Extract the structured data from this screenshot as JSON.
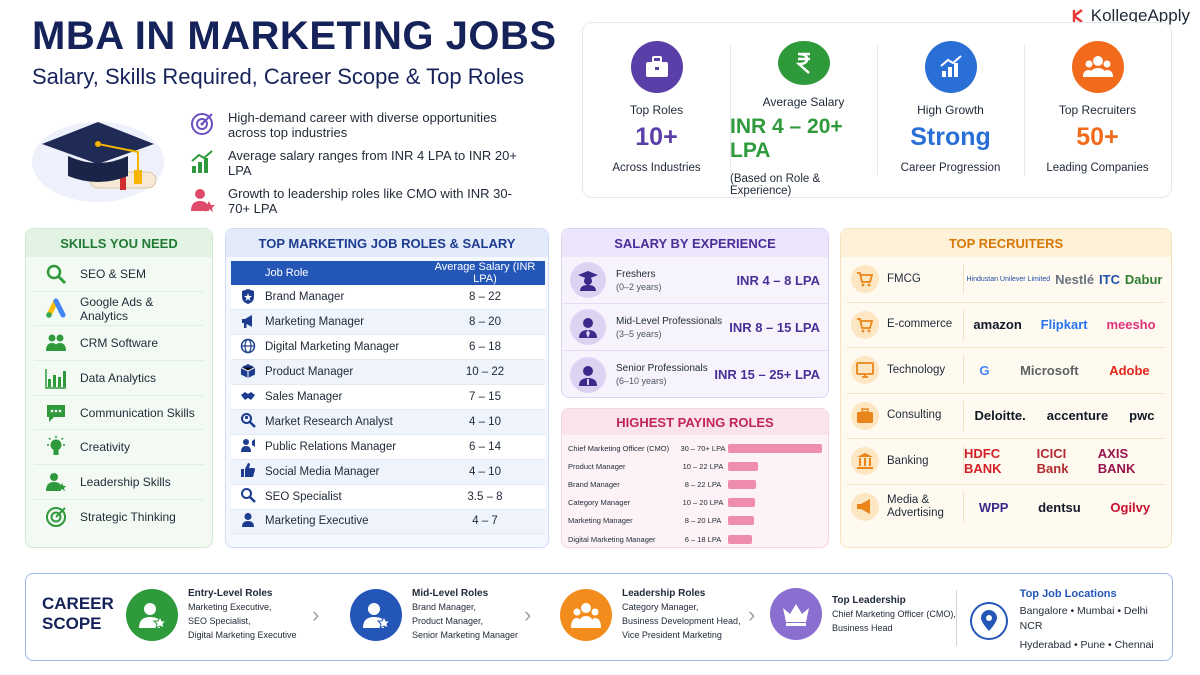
{
  "brand": {
    "name": "KollegeApply"
  },
  "header": {
    "title": "MBA IN MARKETING JOBS",
    "subtitle": "Salary, Skills Required, Career Scope & Top Roles"
  },
  "bullets": [
    {
      "icon": "target-icon",
      "text": "High-demand career with diverse opportunities across top industries"
    },
    {
      "icon": "growth-chart-icon",
      "text": "Average salary ranges from INR 4 LPA to INR 20+ LPA"
    },
    {
      "icon": "leader-icon",
      "text": "Growth to leadership roles like CMO with INR 30-70+ LPA"
    }
  ],
  "stats": [
    {
      "label": "Top Roles",
      "value": "10+",
      "sub": "Across Industries",
      "color": "#5b3fa8",
      "icon": "briefcase-icon"
    },
    {
      "label": "Average Salary",
      "value": "INR 4 – 20+ LPA",
      "sub": "(Based on Role & Experience)",
      "color": "#2e9a3c",
      "icon": "rupee-icon"
    },
    {
      "label": "High Growth",
      "value": "Strong",
      "sub": "Career Progression",
      "color": "#2a6fd6",
      "icon": "growth-chart-icon"
    },
    {
      "label": "Top Recruiters",
      "value": "50+",
      "sub": "Leading Companies",
      "color": "#f26b1d",
      "icon": "group-icon"
    }
  ],
  "skills": {
    "title": "SKILLS YOU NEED",
    "items": [
      {
        "label": "SEO & SEM",
        "icon": "search-icon"
      },
      {
        "label": "Google Ads & Analytics",
        "icon": "google-ads-icon"
      },
      {
        "label": "CRM Software",
        "icon": "people-icon"
      },
      {
        "label": "Data Analytics",
        "icon": "bar-chart-icon"
      },
      {
        "label": "Communication Skills",
        "icon": "chat-icon"
      },
      {
        "label": "Creativity",
        "icon": "lightbulb-icon"
      },
      {
        "label": "Leadership Skills",
        "icon": "leader-icon"
      },
      {
        "label": "Strategic Thinking",
        "icon": "target-icon"
      }
    ]
  },
  "roles": {
    "title": "TOP MARKETING JOB ROLES & SALARY",
    "col1": "Job Role",
    "col2": "Average Salary (INR LPA)",
    "rows": [
      {
        "role": "Brand Manager",
        "salary": "8 – 22",
        "icon": "badge-icon"
      },
      {
        "role": "Marketing Manager",
        "salary": "8 – 20",
        "icon": "megaphone-icon"
      },
      {
        "role": "Digital Marketing Manager",
        "salary": "6 – 18",
        "icon": "globe-icon"
      },
      {
        "role": "Product Manager",
        "salary": "10 – 22",
        "icon": "box-icon"
      },
      {
        "role": "Sales Manager",
        "salary": "7 – 15",
        "icon": "handshake-icon"
      },
      {
        "role": "Market Research Analyst",
        "salary": "4 – 10",
        "icon": "research-icon"
      },
      {
        "role": "Public Relations Manager",
        "salary": "6 – 14",
        "icon": "pr-icon"
      },
      {
        "role": "Social Media Manager",
        "salary": "4 – 10",
        "icon": "thumbs-up-icon"
      },
      {
        "role": "SEO Specialist",
        "salary": "3.5 – 8",
        "icon": "search-icon"
      },
      {
        "role": "Marketing Executive",
        "salary": "4 – 7",
        "icon": "person-icon"
      }
    ]
  },
  "experience": {
    "title": "SALARY BY EXPERIENCE",
    "rows": [
      {
        "level": "Freshers",
        "years": "(0–2 years)",
        "salary": "INR 4 – 8 LPA"
      },
      {
        "level": "Mid-Level Professionals",
        "years": "(3–5 years)",
        "salary": "INR 8 – 15 LPA"
      },
      {
        "level": "Senior Professionals",
        "years": "(6–10 years)",
        "salary": "INR 15 – 25+ LPA"
      }
    ]
  },
  "highest": {
    "title": "HIGHEST PAYING ROLES",
    "rows": [
      {
        "role": "Chief Marketing Officer (CMO)",
        "range": "30 – 70+ LPA",
        "level": 1.0
      },
      {
        "role": "Product Manager",
        "range": "10 – 22 LPA",
        "level": 0.32
      },
      {
        "role": "Brand Manager",
        "range": "8 – 22 LPA",
        "level": 0.3
      },
      {
        "role": "Category Manager",
        "range": "10 – 20 LPA",
        "level": 0.29
      },
      {
        "role": "Marketing Manager",
        "range": "8 – 20 LPA",
        "level": 0.28
      },
      {
        "role": "Digital Marketing Manager",
        "range": "6 – 18 LPA",
        "level": 0.26
      }
    ]
  },
  "recruiters": {
    "title": "TOP RECRUITERS",
    "rows": [
      {
        "sector": "FMCG",
        "icon": "cart-icon",
        "logos": [
          "Hindustan Unilever Limited",
          "Nestlé",
          "ITC",
          "Dabur"
        ],
        "colors": [
          "#1f4fa8",
          "#6b7280",
          "#1f4fa8",
          "#2e7d32"
        ]
      },
      {
        "sector": "E-commerce",
        "icon": "cart-icon",
        "logos": [
          "amazon",
          "Flipkart",
          "meesho"
        ],
        "colors": [
          "#111827",
          "#2874f0",
          "#e0307a"
        ]
      },
      {
        "sector": "Technology",
        "icon": "monitor-icon",
        "logos": [
          "G",
          "Microsoft",
          "Adobe"
        ],
        "colors": [
          "#4285f4",
          "#5f6368",
          "#e1251b"
        ]
      },
      {
        "sector": "Consulting",
        "icon": "briefcase-icon",
        "logos": [
          "Deloitte.",
          "accenture",
          "pwc"
        ],
        "colors": [
          "#111827",
          "#111827",
          "#111827"
        ]
      },
      {
        "sector": "Banking",
        "icon": "bank-icon",
        "logos": [
          "HDFC BANK",
          "ICICI Bank",
          "AXIS BANK"
        ],
        "colors": [
          "#d31f26",
          "#b02a30",
          "#97144d"
        ]
      },
      {
        "sector": "Media & Advertising",
        "icon": "megaphone-icon",
        "logos": [
          "WPP",
          "dentsu",
          "Ogilvy"
        ],
        "colors": [
          "#3b2a8a",
          "#111827",
          "#c8102e"
        ]
      }
    ]
  },
  "career": {
    "title_line1": "CAREER",
    "title_line2": "SCOPE",
    "stages": [
      {
        "heading": "Entry-Level Roles",
        "lines": [
          "Marketing Executive,",
          "SEO Specialist,",
          "Digital Marketing Executive"
        ],
        "color": "#2e9a3c"
      },
      {
        "heading": "Mid-Level Roles",
        "lines": [
          "Brand Manager,",
          "Product Manager,",
          "Senior Marketing Manager"
        ],
        "color": "#2456b8"
      },
      {
        "heading": "Leadership Roles",
        "lines": [
          "Category Manager,",
          "Business Development Head,",
          "Vice President Marketing"
        ],
        "color": "#f28c1d"
      },
      {
        "heading": "Top Leadership",
        "lines": [
          "Chief Marketing Officer (CMO),",
          "Business Head"
        ],
        "color": "#8b6fd0"
      }
    ],
    "locations": {
      "heading": "Top Job Locations",
      "line1": "Bangalore • Mumbai • Delhi NCR",
      "line2": "Hyderabad • Pune • Chennai"
    }
  }
}
